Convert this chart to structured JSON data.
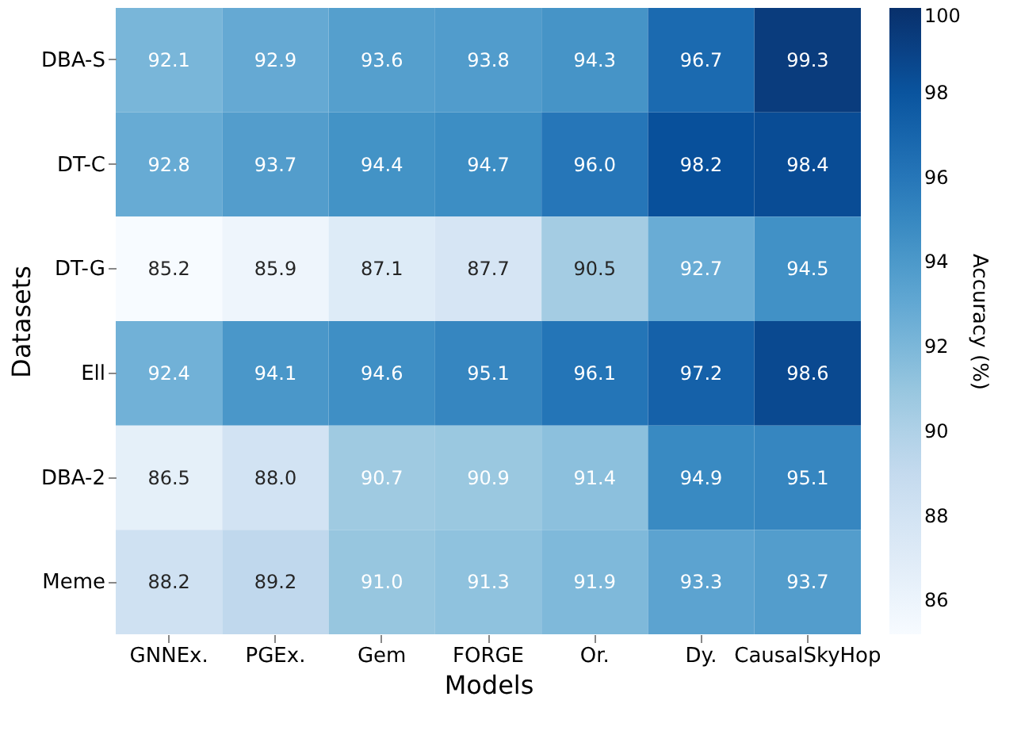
{
  "chart_data": {
    "type": "heatmap",
    "xlabel": "Models",
    "ylabel": "Datasets",
    "clabel": "Accuracy (%)",
    "categories": [
      "GNNEx.",
      "PGEx.",
      "Gem",
      "FORGE",
      "Or.",
      "Dy.",
      "CausalSkyHop"
    ],
    "y_categories": [
      "DBA-S",
      "DT-C",
      "DT-G",
      "Ell",
      "DBA-2",
      "Meme"
    ],
    "cells": [
      [
        92.1,
        92.9,
        93.6,
        93.8,
        94.3,
        96.7,
        99.3
      ],
      [
        92.8,
        93.7,
        94.4,
        94.7,
        96.0,
        98.2,
        98.4
      ],
      [
        85.2,
        85.9,
        87.1,
        87.7,
        90.5,
        92.7,
        94.5
      ],
      [
        92.4,
        94.1,
        94.6,
        95.1,
        96.1,
        97.2,
        98.6
      ],
      [
        86.5,
        88.0,
        90.7,
        90.9,
        91.4,
        94.9,
        95.1
      ],
      [
        88.2,
        89.2,
        91.0,
        91.3,
        91.9,
        93.3,
        93.7
      ]
    ],
    "cell_labels": [
      [
        "92.1",
        "92.9",
        "93.6",
        "93.8",
        "94.3",
        "96.7",
        "99.3"
      ],
      [
        "92.8",
        "93.7",
        "94.4",
        "94.7",
        "96.0",
        "98.2",
        "98.4"
      ],
      [
        "85.2",
        "85.9",
        "87.1",
        "87.7",
        "90.5",
        "92.7",
        "94.5"
      ],
      [
        "92.4",
        "94.1",
        "94.6",
        "95.1",
        "96.1",
        "97.2",
        "98.6"
      ],
      [
        "86.5",
        "88.0",
        "90.7",
        "90.9",
        "91.4",
        "94.9",
        "95.1"
      ],
      [
        "88.2",
        "89.2",
        "91.0",
        "91.3",
        "91.9",
        "93.3",
        "93.7"
      ]
    ],
    "data_labels": true,
    "clim": [
      85.2,
      100
    ],
    "cticks": [
      86,
      88,
      90,
      92,
      94,
      96,
      98,
      100
    ]
  }
}
